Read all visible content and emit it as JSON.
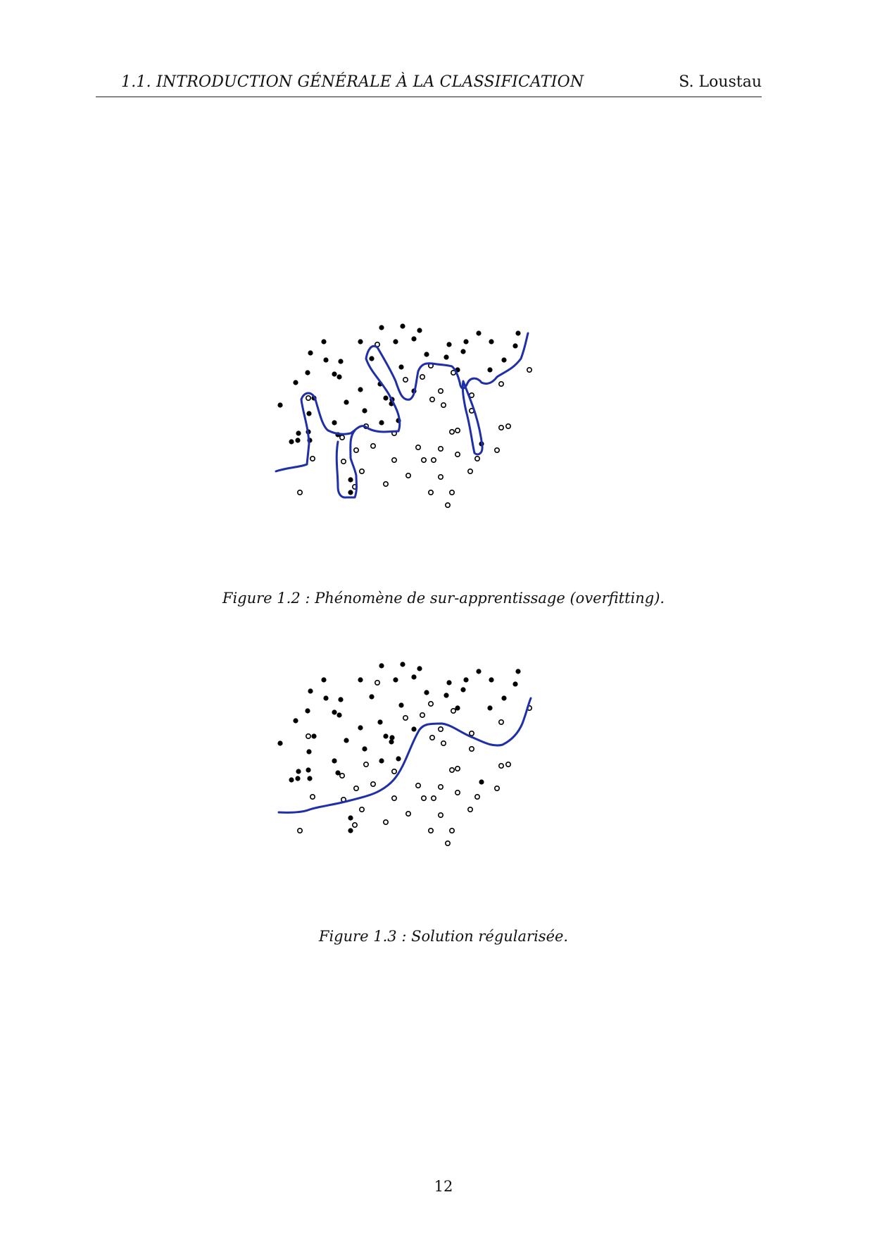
{
  "header": {
    "section": "1.1.  INTRODUCTION GÉNÉRALE À LA CLASSIFICATION",
    "author": "S. Loustau"
  },
  "colors": {
    "boundary": "#1f2fa8",
    "points": "#000000"
  },
  "figures": [
    {
      "caption": "Figure 1.2 : Phénomène de sur-apprentissage (overfitting).",
      "boundary": "overfitting"
    },
    {
      "caption": "Figure 1.3 : Solution régularisée.",
      "boundary": "regularized"
    }
  ],
  "page_number": "12"
}
